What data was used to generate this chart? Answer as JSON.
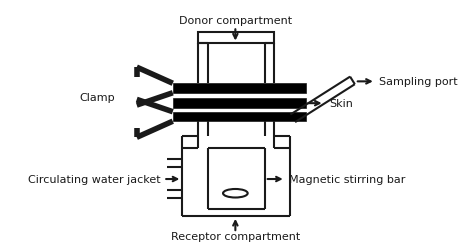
{
  "bg_color": "#ffffff",
  "line_color": "#1a1a1a",
  "lw": 1.5,
  "lw_thick": 4.0,
  "labels": {
    "donor": "Donor compartment",
    "receptor": "Receptor compartment",
    "clamp": "Clamp",
    "skin": "Skin",
    "sampling_port": "Sampling port",
    "water_jacket": "Circulating water jacket",
    "mag_bar": "Magnetic stirring bar"
  },
  "figsize": [
    4.74,
    2.51
  ],
  "dpi": 100
}
